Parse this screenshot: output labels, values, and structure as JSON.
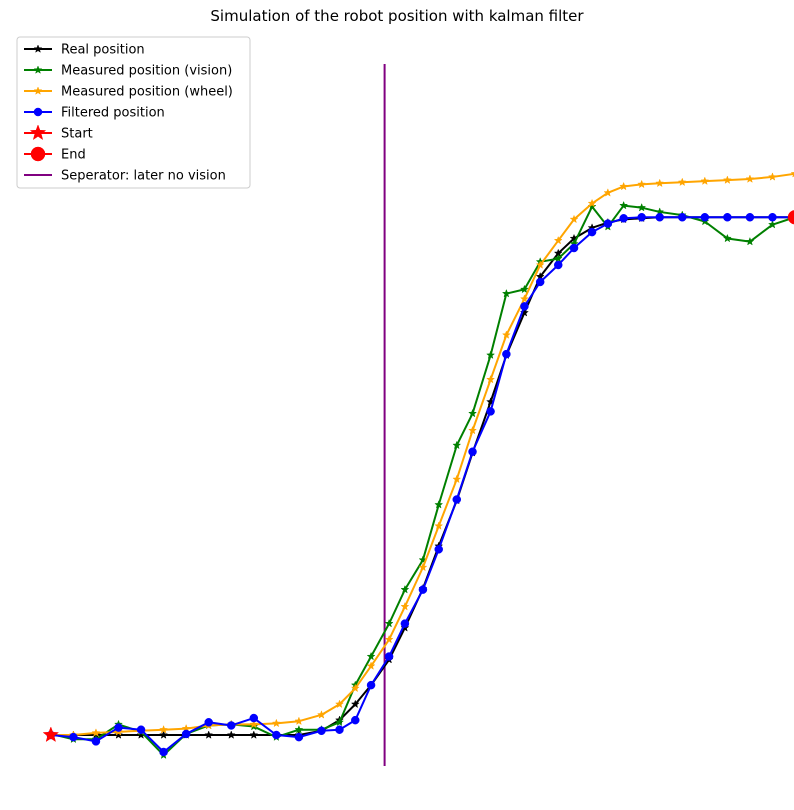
{
  "chart_data": {
    "type": "line",
    "title": "Simulation of the robot position with kalman filter",
    "xlabel": "",
    "ylabel": "",
    "axes_visible": false,
    "grid": false,
    "legend_position": "top-left",
    "xlim": [
      -1.9,
      32.6
    ],
    "ylim": [
      -2.45,
      32.8
    ],
    "series": [
      {
        "name": "Real position",
        "color": "#000000",
        "marker": "star",
        "x": [
          0,
          1,
          2,
          3,
          4,
          5,
          6,
          7,
          8,
          9,
          10,
          11,
          12,
          12.8,
          13.5,
          14.2,
          15,
          15.7,
          16.5,
          17.2,
          18,
          18.7,
          19.5,
          20.2,
          21,
          21.7,
          22.5,
          23.2,
          24,
          24.7,
          25.4,
          26.2,
          27,
          28,
          29,
          30,
          31,
          32,
          33
        ],
        "y": [
          0,
          0,
          0,
          0,
          0,
          0,
          0,
          0,
          0,
          0,
          0,
          0,
          0.2,
          0.7,
          1.45,
          2.35,
          3.55,
          5.05,
          6.9,
          8.9,
          11.05,
          13.3,
          15.7,
          17.9,
          19.9,
          21.6,
          22.7,
          23.4,
          23.9,
          24.15,
          24.3,
          24.35,
          24.4,
          24.4,
          24.4,
          24.4,
          24.4,
          24.4,
          24.4
        ]
      },
      {
        "name": "Measured position (vision)",
        "color": "#008000",
        "marker": "star",
        "x": [
          0,
          1,
          2,
          3,
          4,
          5,
          6,
          7,
          8,
          9,
          10,
          11,
          12,
          12.8,
          13.5,
          14.2,
          15,
          15.7,
          16.5,
          17.2,
          18,
          18.7,
          19.5,
          20.2,
          21,
          21.7,
          22.5,
          23.2,
          24,
          24.7,
          25.4,
          26.2,
          27,
          28,
          29,
          30,
          31,
          32,
          33
        ],
        "y": [
          0.05,
          -0.2,
          -0.2,
          0.5,
          0.15,
          -0.95,
          0.05,
          0.45,
          0.5,
          0.4,
          -0.1,
          0.25,
          0.25,
          0.6,
          2.35,
          3.7,
          5.25,
          6.85,
          8.25,
          10.85,
          13.65,
          15.15,
          17.9,
          20.8,
          21,
          22.3,
          22.45,
          23.15,
          24.9,
          23.95,
          24.95,
          24.85,
          24.65,
          24.5,
          24.2,
          23.4,
          23.25,
          24.05,
          24.4
        ]
      },
      {
        "name": "Measured position (wheel)",
        "color": "#ffa500",
        "marker": "star",
        "x": [
          0,
          1,
          2,
          3,
          4,
          5,
          6,
          7,
          8,
          9,
          10,
          11,
          12,
          12.8,
          13.5,
          14.2,
          15,
          15.7,
          16.5,
          17.2,
          18,
          18.7,
          19.5,
          20.2,
          21,
          21.7,
          22.5,
          23.2,
          24,
          24.7,
          25.4,
          26.2,
          27,
          28,
          29,
          30,
          31,
          32,
          33
        ],
        "y": [
          0,
          0,
          0.1,
          0.15,
          0.2,
          0.25,
          0.3,
          0.45,
          0.5,
          0.5,
          0.55,
          0.65,
          0.95,
          1.45,
          2.2,
          3.25,
          4.5,
          6.05,
          7.9,
          9.85,
          12.05,
          14.35,
          16.75,
          18.85,
          20.55,
          22.15,
          23.3,
          24.3,
          25.05,
          25.55,
          25.85,
          25.95,
          26,
          26.05,
          26.1,
          26.15,
          26.2,
          26.3,
          26.45
        ]
      },
      {
        "name": "Filtered position",
        "color": "#0000ff",
        "marker": "circle",
        "x": [
          0,
          1,
          2,
          3,
          4,
          5,
          6,
          7,
          8,
          9,
          10,
          11,
          12,
          12.8,
          13.5,
          14.2,
          15,
          15.7,
          16.5,
          17.2,
          18,
          18.7,
          19.5,
          20.2,
          21,
          21.7,
          22.5,
          23.2,
          24,
          24.7,
          25.4,
          26.2,
          27,
          28,
          29,
          30,
          31,
          32,
          33
        ],
        "y": [
          0,
          -0.1,
          -0.3,
          0.35,
          0.25,
          -0.8,
          0.05,
          0.6,
          0.45,
          0.8,
          0,
          -0.1,
          0.2,
          0.25,
          0.7,
          2.35,
          3.7,
          5.25,
          6.85,
          8.75,
          11.1,
          13.35,
          15.25,
          17.95,
          20.2,
          21.35,
          22.15,
          22.95,
          23.7,
          24.1,
          24.35,
          24.4,
          24.4,
          24.4,
          24.4,
          24.4,
          24.4,
          24.4,
          24.4
        ]
      }
    ],
    "start": {
      "name": "Start",
      "color": "#ff0000",
      "marker": "star",
      "x": 0,
      "y": 0
    },
    "end": {
      "name": "End",
      "color": "#ff0000",
      "marker": "circle",
      "x": 33,
      "y": 24.4
    },
    "separator": {
      "name": "Seperator: later no vision",
      "color": "#800080",
      "x": 14.8
    }
  }
}
